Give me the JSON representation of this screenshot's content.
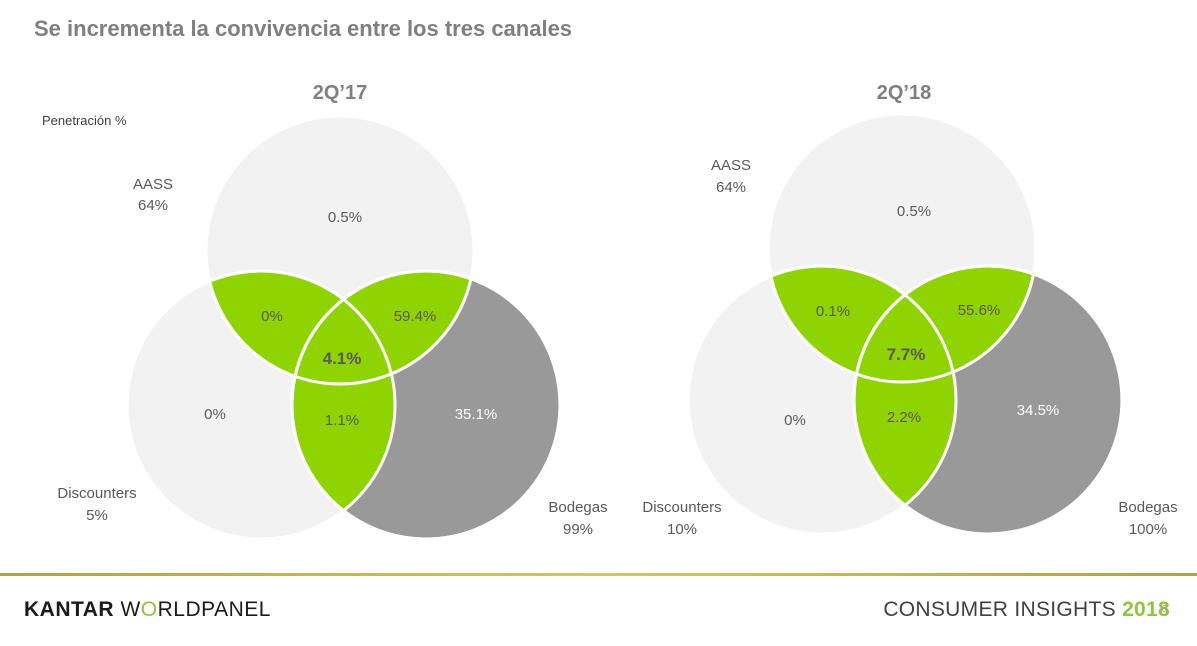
{
  "slide": {
    "title": "Se incrementa la convivencia entre los tres canales",
    "penetration_label": "Penetración %"
  },
  "colors": {
    "light_circle": "#f2f2f2",
    "dark_circle": "#999999",
    "overlap_green": "#8fd300",
    "stroke": "#ffffff",
    "accent": "#8cc63f"
  },
  "diagrams": [
    {
      "period": "2Q’17",
      "aass": {
        "name": "AASS",
        "pct": "64%"
      },
      "discounters": {
        "name": "Discounters",
        "pct": "5%"
      },
      "bodegas": {
        "name": "Bodegas",
        "pct": "99%"
      },
      "regions": {
        "aass_only": "0.5%",
        "discounters_only": "0%",
        "bodegas_only": "35.1%",
        "aass_discounters": "0%",
        "aass_bodegas": "59.4%",
        "discounters_bodegas": "1.1%",
        "all_three": "4.1%"
      }
    },
    {
      "period": "2Q’18",
      "aass": {
        "name": "AASS",
        "pct": "64%"
      },
      "discounters": {
        "name": "Discounters",
        "pct": "10%"
      },
      "bodegas": {
        "name": "Bodegas",
        "pct": "100%"
      },
      "regions": {
        "aass_only": "0.5%",
        "discounters_only": "0%",
        "bodegas_only": "34.5%",
        "aass_discounters": "0.1%",
        "aass_bodegas": "55.6%",
        "discounters_bodegas": "2.2%",
        "all_three": "7.7%"
      }
    }
  ],
  "footer": {
    "brand_strong": "KANTAR",
    "brand_pre": "W",
    "brand_o": "O",
    "brand_post": "RLDPANEL",
    "insights_label": "CONSUMER INSIGHTS",
    "insights_year": "2018",
    "page_number": "6"
  }
}
